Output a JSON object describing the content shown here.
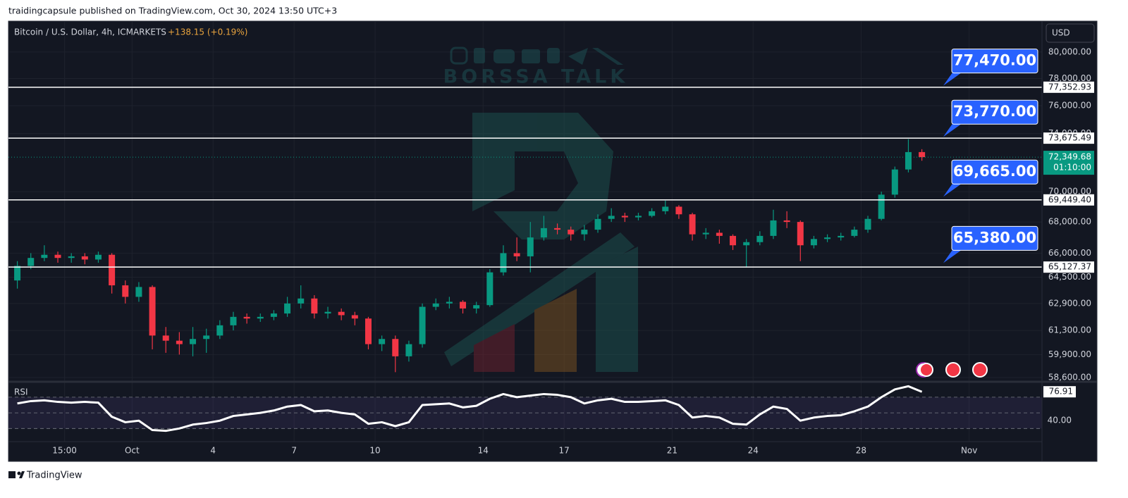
{
  "header": {
    "byline": "traidingcapsule published on TradingView.com, Oct 30, 2024 13:50 UTC+3"
  },
  "watermark": "BORSSA TALK",
  "footer": "TradingView",
  "chart_data": {
    "type": "candlestick",
    "title": "Bitcoin / U.S. Dollar, 4h, ICMARKETS",
    "change": "+138.15 (+0.19%)",
    "currency": "USD",
    "log_scale": true,
    "grid": true,
    "up_color": "#089981",
    "down_color": "#f23645",
    "categories": [
      null,
      null,
      null,
      null,
      "15:00",
      null,
      null,
      null,
      null,
      "Oct",
      null,
      null,
      null,
      null,
      null,
      "4",
      null,
      null,
      null,
      null,
      null,
      "7",
      null,
      null,
      null,
      null,
      null,
      "10",
      null,
      null,
      null,
      null,
      null,
      null,
      null,
      "14",
      null,
      null,
      null,
      null,
      null,
      "17",
      null,
      null,
      null,
      null,
      null,
      null,
      null,
      "21",
      null,
      null,
      null,
      null,
      null,
      "24",
      null,
      null,
      null,
      null,
      null,
      null,
      null,
      "28",
      null,
      null,
      null,
      null,
      null,
      null,
      null,
      "Nov",
      null,
      null,
      null,
      null
    ],
    "open": [
      64300,
      65200,
      65700,
      65900,
      65700,
      65800,
      65600,
      65900,
      64000,
      63300,
      63900,
      61000,
      60700,
      60500,
      60800,
      61000,
      61600,
      62100,
      62000,
      62100,
      62300,
      62900,
      63200,
      62300,
      62400,
      62200,
      62000,
      60500,
      60800,
      59800,
      60500,
      62700,
      62900,
      63000,
      62600,
      62800,
      64800,
      66000,
      65800,
      67000,
      67600,
      67500,
      67200,
      67500,
      68200,
      68400,
      68300,
      68400,
      68700,
      69000,
      68500,
      67200,
      67300,
      67100,
      66500,
      66700,
      67100,
      68100,
      68000,
      66500,
      66900,
      67000,
      67100,
      67500,
      68200,
      69800,
      71500,
      72700,
      null,
      null,
      null,
      null,
      null,
      null,
      null,
      null
    ],
    "high": [
      65500,
      66000,
      66500,
      66100,
      66000,
      66000,
      66100,
      66000,
      64300,
      64200,
      64000,
      61500,
      61200,
      61500,
      61400,
      61900,
      62400,
      62300,
      62300,
      62500,
      63300,
      64000,
      63400,
      62700,
      62600,
      62400,
      62100,
      61000,
      61000,
      60700,
      62900,
      63200,
      63300,
      63100,
      63000,
      65000,
      66500,
      67000,
      68000,
      68400,
      67900,
      67700,
      67800,
      68500,
      68900,
      68600,
      68600,
      68900,
      69400,
      69100,
      68600,
      67600,
      67500,
      67200,
      66900,
      67400,
      68800,
      68700,
      68100,
      67100,
      67200,
      67300,
      67700,
      68400,
      70000,
      71700,
      73600,
      72900,
      null,
      null,
      null,
      null,
      null,
      null,
      null,
      null
    ],
    "low": [
      63800,
      65000,
      65500,
      65400,
      65400,
      65300,
      65400,
      63500,
      62900,
      63000,
      60200,
      60000,
      59900,
      59800,
      60000,
      60800,
      61300,
      61700,
      61800,
      61900,
      62100,
      62600,
      62000,
      62000,
      61900,
      61600,
      60200,
      60100,
      58900,
      59500,
      60300,
      62500,
      62600,
      62300,
      62300,
      62700,
      64600,
      65500,
      64800,
      66800,
      67200,
      66800,
      66800,
      67300,
      68000,
      68000,
      68100,
      68300,
      68500,
      68200,
      66800,
      66900,
      66600,
      66200,
      65100,
      66500,
      66900,
      67600,
      65500,
      66300,
      66700,
      66800,
      67000,
      67300,
      68100,
      69600,
      71300,
      72100,
      null,
      null,
      null,
      null,
      null,
      null,
      null,
      null
    ],
    "close": [
      65200,
      65700,
      65900,
      65700,
      65800,
      65600,
      65900,
      64000,
      63300,
      63900,
      61000,
      60700,
      60500,
      60800,
      61000,
      61600,
      62100,
      62000,
      62100,
      62300,
      62900,
      63200,
      62300,
      62400,
      62200,
      62000,
      60500,
      60800,
      59800,
      60500,
      62700,
      62900,
      63000,
      62600,
      62800,
      64800,
      66000,
      65800,
      67000,
      67600,
      67500,
      67200,
      67500,
      68200,
      68400,
      68300,
      68400,
      68700,
      69000,
      68500,
      67200,
      67300,
      67100,
      66500,
      66700,
      67100,
      68100,
      68000,
      66500,
      66900,
      67000,
      67100,
      67500,
      68200,
      69800,
      71500,
      72700,
      72349.68,
      null,
      null,
      null,
      null,
      null,
      null,
      null,
      null
    ],
    "ylim": [
      58440,
      82400
    ],
    "yticks": [
      {
        "value": 80000,
        "label": "80,000.00"
      },
      {
        "value": 78000,
        "label": "78,000.00"
      },
      {
        "value": 76000,
        "label": "76,000.00"
      },
      {
        "value": 74000,
        "label": "74,000.00"
      },
      {
        "value": 70000,
        "label": "70,000.00"
      },
      {
        "value": 68000,
        "label": "68,000.00"
      },
      {
        "value": 66000,
        "label": "66,000.00"
      },
      {
        "value": 64500,
        "label": "64,500.00"
      },
      {
        "value": 62900,
        "label": "62,900.00"
      },
      {
        "value": 61300,
        "label": "61,300.00"
      },
      {
        "value": 59900,
        "label": "59,900.00"
      },
      {
        "value": 58600,
        "label": "58,600.00"
      }
    ],
    "levels": [
      {
        "value": 77352.93,
        "label": "77,352.93"
      },
      {
        "value": 73675.49,
        "label": "73,675.49"
      },
      {
        "value": 69449.4,
        "label": "69,449.40"
      },
      {
        "value": 65127.37,
        "label": "65,127.37"
      }
    ],
    "callouts": [
      {
        "value": 77470,
        "label": "77,470.00"
      },
      {
        "value": 73770,
        "label": "73,770.00"
      },
      {
        "value": 69665,
        "label": "69,665.00"
      },
      {
        "value": 65380,
        "label": "65,380.00"
      }
    ],
    "last_price": {
      "value": 72349.68,
      "label": "72,349.68",
      "countdown": "01:10:00"
    },
    "rsi": {
      "title": "RSI",
      "color": "#ffffff",
      "values": [
        62,
        65,
        66,
        64,
        63,
        64,
        63,
        45,
        38,
        40,
        28,
        27,
        30,
        35,
        37,
        40,
        46,
        48,
        50,
        53,
        58,
        60,
        52,
        53,
        50,
        48,
        36,
        38,
        33,
        38,
        60,
        61,
        62,
        57,
        59,
        68,
        74,
        70,
        72,
        74,
        73,
        70,
        62,
        66,
        68,
        64,
        64,
        65,
        66,
        60,
        44,
        46,
        44,
        36,
        35,
        48,
        58,
        55,
        40,
        44,
        46,
        47,
        52,
        58,
        70,
        80,
        84,
        76.91,
        null,
        null,
        null,
        null,
        null,
        null,
        null,
        null
      ],
      "ylim": [
        15,
        87
      ],
      "yticks": [
        {
          "value": 40,
          "label": "40.00"
        }
      ],
      "levels": [
        70,
        50,
        30
      ],
      "last": {
        "value": 76.91,
        "label": "76.91"
      }
    }
  }
}
